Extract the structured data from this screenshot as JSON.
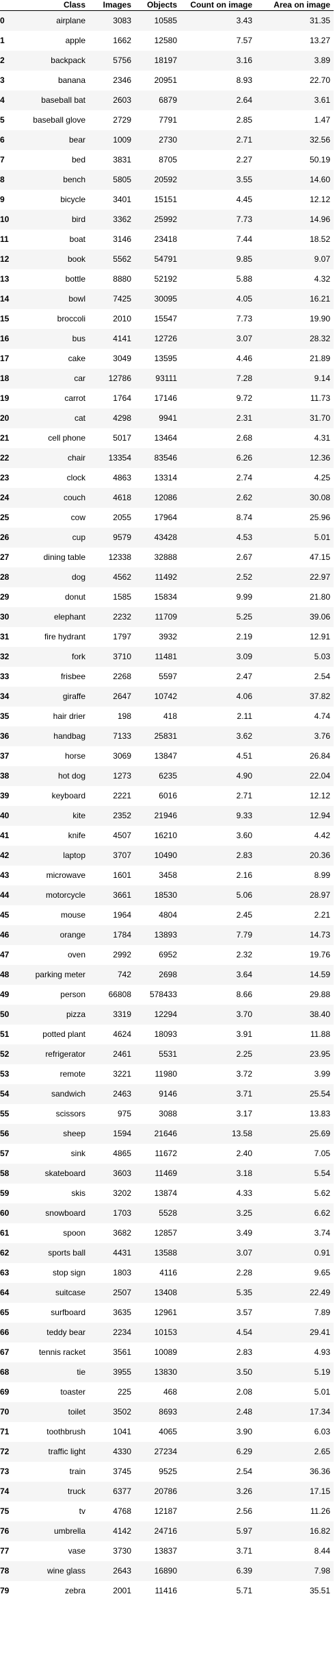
{
  "table": {
    "columns": [
      "",
      "Class",
      "Images",
      "Objects",
      "Count on image",
      "Area on image"
    ],
    "rows": [
      [
        "0",
        "airplane",
        "3083",
        "10585",
        "3.43",
        "31.35"
      ],
      [
        "1",
        "apple",
        "1662",
        "12580",
        "7.57",
        "13.27"
      ],
      [
        "2",
        "backpack",
        "5756",
        "18197",
        "3.16",
        "3.89"
      ],
      [
        "3",
        "banana",
        "2346",
        "20951",
        "8.93",
        "22.70"
      ],
      [
        "4",
        "baseball bat",
        "2603",
        "6879",
        "2.64",
        "3.61"
      ],
      [
        "5",
        "baseball glove",
        "2729",
        "7791",
        "2.85",
        "1.47"
      ],
      [
        "6",
        "bear",
        "1009",
        "2730",
        "2.71",
        "32.56"
      ],
      [
        "7",
        "bed",
        "3831",
        "8705",
        "2.27",
        "50.19"
      ],
      [
        "8",
        "bench",
        "5805",
        "20592",
        "3.55",
        "14.60"
      ],
      [
        "9",
        "bicycle",
        "3401",
        "15151",
        "4.45",
        "12.12"
      ],
      [
        "10",
        "bird",
        "3362",
        "25992",
        "7.73",
        "14.96"
      ],
      [
        "11",
        "boat",
        "3146",
        "23418",
        "7.44",
        "18.52"
      ],
      [
        "12",
        "book",
        "5562",
        "54791",
        "9.85",
        "9.07"
      ],
      [
        "13",
        "bottle",
        "8880",
        "52192",
        "5.88",
        "4.32"
      ],
      [
        "14",
        "bowl",
        "7425",
        "30095",
        "4.05",
        "16.21"
      ],
      [
        "15",
        "broccoli",
        "2010",
        "15547",
        "7.73",
        "19.90"
      ],
      [
        "16",
        "bus",
        "4141",
        "12726",
        "3.07",
        "28.32"
      ],
      [
        "17",
        "cake",
        "3049",
        "13595",
        "4.46",
        "21.89"
      ],
      [
        "18",
        "car",
        "12786",
        "93111",
        "7.28",
        "9.14"
      ],
      [
        "19",
        "carrot",
        "1764",
        "17146",
        "9.72",
        "11.73"
      ],
      [
        "20",
        "cat",
        "4298",
        "9941",
        "2.31",
        "31.70"
      ],
      [
        "21",
        "cell phone",
        "5017",
        "13464",
        "2.68",
        "4.31"
      ],
      [
        "22",
        "chair",
        "13354",
        "83546",
        "6.26",
        "12.36"
      ],
      [
        "23",
        "clock",
        "4863",
        "13314",
        "2.74",
        "4.25"
      ],
      [
        "24",
        "couch",
        "4618",
        "12086",
        "2.62",
        "30.08"
      ],
      [
        "25",
        "cow",
        "2055",
        "17964",
        "8.74",
        "25.96"
      ],
      [
        "26",
        "cup",
        "9579",
        "43428",
        "4.53",
        "5.01"
      ],
      [
        "27",
        "dining table",
        "12338",
        "32888",
        "2.67",
        "47.15"
      ],
      [
        "28",
        "dog",
        "4562",
        "11492",
        "2.52",
        "22.97"
      ],
      [
        "29",
        "donut",
        "1585",
        "15834",
        "9.99",
        "21.80"
      ],
      [
        "30",
        "elephant",
        "2232",
        "11709",
        "5.25",
        "39.06"
      ],
      [
        "31",
        "fire hydrant",
        "1797",
        "3932",
        "2.19",
        "12.91"
      ],
      [
        "32",
        "fork",
        "3710",
        "11481",
        "3.09",
        "5.03"
      ],
      [
        "33",
        "frisbee",
        "2268",
        "5597",
        "2.47",
        "2.54"
      ],
      [
        "34",
        "giraffe",
        "2647",
        "10742",
        "4.06",
        "37.82"
      ],
      [
        "35",
        "hair drier",
        "198",
        "418",
        "2.11",
        "4.74"
      ],
      [
        "36",
        "handbag",
        "7133",
        "25831",
        "3.62",
        "3.76"
      ],
      [
        "37",
        "horse",
        "3069",
        "13847",
        "4.51",
        "26.84"
      ],
      [
        "38",
        "hot dog",
        "1273",
        "6235",
        "4.90",
        "22.04"
      ],
      [
        "39",
        "keyboard",
        "2221",
        "6016",
        "2.71",
        "12.12"
      ],
      [
        "40",
        "kite",
        "2352",
        "21946",
        "9.33",
        "12.94"
      ],
      [
        "41",
        "knife",
        "4507",
        "16210",
        "3.60",
        "4.42"
      ],
      [
        "42",
        "laptop",
        "3707",
        "10490",
        "2.83",
        "20.36"
      ],
      [
        "43",
        "microwave",
        "1601",
        "3458",
        "2.16",
        "8.99"
      ],
      [
        "44",
        "motorcycle",
        "3661",
        "18530",
        "5.06",
        "28.97"
      ],
      [
        "45",
        "mouse",
        "1964",
        "4804",
        "2.45",
        "2.21"
      ],
      [
        "46",
        "orange",
        "1784",
        "13893",
        "7.79",
        "14.73"
      ],
      [
        "47",
        "oven",
        "2992",
        "6952",
        "2.32",
        "19.76"
      ],
      [
        "48",
        "parking meter",
        "742",
        "2698",
        "3.64",
        "14.59"
      ],
      [
        "49",
        "person",
        "66808",
        "578433",
        "8.66",
        "29.88"
      ],
      [
        "50",
        "pizza",
        "3319",
        "12294",
        "3.70",
        "38.40"
      ],
      [
        "51",
        "potted plant",
        "4624",
        "18093",
        "3.91",
        "11.88"
      ],
      [
        "52",
        "refrigerator",
        "2461",
        "5531",
        "2.25",
        "23.95"
      ],
      [
        "53",
        "remote",
        "3221",
        "11980",
        "3.72",
        "3.99"
      ],
      [
        "54",
        "sandwich",
        "2463",
        "9146",
        "3.71",
        "25.54"
      ],
      [
        "55",
        "scissors",
        "975",
        "3088",
        "3.17",
        "13.83"
      ],
      [
        "56",
        "sheep",
        "1594",
        "21646",
        "13.58",
        "25.69"
      ],
      [
        "57",
        "sink",
        "4865",
        "11672",
        "2.40",
        "7.05"
      ],
      [
        "58",
        "skateboard",
        "3603",
        "11469",
        "3.18",
        "5.54"
      ],
      [
        "59",
        "skis",
        "3202",
        "13874",
        "4.33",
        "5.62"
      ],
      [
        "60",
        "snowboard",
        "1703",
        "5528",
        "3.25",
        "6.62"
      ],
      [
        "61",
        "spoon",
        "3682",
        "12857",
        "3.49",
        "3.74"
      ],
      [
        "62",
        "sports ball",
        "4431",
        "13588",
        "3.07",
        "0.91"
      ],
      [
        "63",
        "stop sign",
        "1803",
        "4116",
        "2.28",
        "9.65"
      ],
      [
        "64",
        "suitcase",
        "2507",
        "13408",
        "5.35",
        "22.49"
      ],
      [
        "65",
        "surfboard",
        "3635",
        "12961",
        "3.57",
        "7.89"
      ],
      [
        "66",
        "teddy bear",
        "2234",
        "10153",
        "4.54",
        "29.41"
      ],
      [
        "67",
        "tennis racket",
        "3561",
        "10089",
        "2.83",
        "4.93"
      ],
      [
        "68",
        "tie",
        "3955",
        "13830",
        "3.50",
        "5.19"
      ],
      [
        "69",
        "toaster",
        "225",
        "468",
        "2.08",
        "5.01"
      ],
      [
        "70",
        "toilet",
        "3502",
        "8693",
        "2.48",
        "17.34"
      ],
      [
        "71",
        "toothbrush",
        "1041",
        "4065",
        "3.90",
        "6.03"
      ],
      [
        "72",
        "traffic light",
        "4330",
        "27234",
        "6.29",
        "2.65"
      ],
      [
        "73",
        "train",
        "3745",
        "9525",
        "2.54",
        "36.36"
      ],
      [
        "74",
        "truck",
        "6377",
        "20786",
        "3.26",
        "17.15"
      ],
      [
        "75",
        "tv",
        "4768",
        "12187",
        "2.56",
        "11.26"
      ],
      [
        "76",
        "umbrella",
        "4142",
        "24716",
        "5.97",
        "16.82"
      ],
      [
        "77",
        "vase",
        "3730",
        "13837",
        "3.71",
        "8.44"
      ],
      [
        "78",
        "wine glass",
        "2643",
        "16890",
        "6.39",
        "7.98"
      ],
      [
        "79",
        "zebra",
        "2001",
        "11416",
        "5.71",
        "35.51"
      ]
    ]
  }
}
